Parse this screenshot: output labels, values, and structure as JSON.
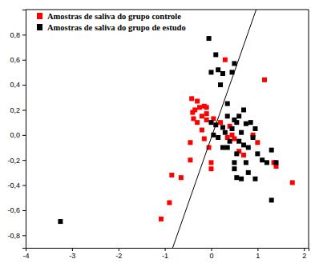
{
  "chart_data": {
    "type": "scatter",
    "xlim": [
      -4,
      2.1
    ],
    "ylim": [
      -0.9,
      1.0
    ],
    "xticks": [
      -4,
      -3,
      -2,
      -1,
      0,
      1,
      2
    ],
    "yticks": [
      {
        "value": -0.8,
        "label": "-0,8"
      },
      {
        "value": -0.6,
        "label": "-0,6"
      },
      {
        "value": -0.4,
        "label": "-0,4"
      },
      {
        "value": -0.2,
        "label": "-0,2"
      },
      {
        "value": 0,
        "label": "0,0"
      },
      {
        "value": 0.2,
        "label": "0,2"
      },
      {
        "value": 0.4,
        "label": "0,4"
      },
      {
        "value": 0.6,
        "label": "0,6"
      },
      {
        "value": 0.8,
        "label": "0,8"
      }
    ],
    "legend": "top-left",
    "grid": false,
    "series": [
      {
        "name": "Amostras de saliva do grupo controle",
        "color": "#ff0000",
        "marker": "square",
        "x": [
          -1.08,
          -0.9,
          -0.85,
          -0.65,
          -0.45,
          -0.45,
          -0.42,
          -0.4,
          -0.38,
          -0.35,
          -0.3,
          -0.3,
          -0.25,
          -0.2,
          -0.2,
          -0.15,
          -0.1,
          -0.1,
          -0.1,
          -0.15,
          -0.05,
          0.0,
          0.0,
          0.05,
          0.2,
          0.3,
          0.35,
          0.4,
          0.5,
          0.6,
          0.7,
          0.9,
          1.0,
          1.15,
          1.35,
          1.4,
          1.75,
          0.45
        ],
        "values": [
          -0.67,
          -0.54,
          -0.32,
          -0.34,
          -0.2,
          -0.06,
          0.29,
          0.18,
          0.13,
          0.2,
          0.27,
          0.1,
          0.22,
          0.15,
          0.04,
          0.23,
          0.22,
          0.17,
          0.12,
          -0.03,
          -0.1,
          -0.22,
          -0.27,
          0.13,
          0.1,
          0.6,
          -0.02,
          0.07,
          -0.03,
          -0.13,
          -0.16,
          0.0,
          -0.06,
          0.44,
          -0.22,
          -0.25,
          -0.38,
          0.0
        ]
      },
      {
        "name": "Amostras de saliva do grupo de estudo",
        "color": "#000000",
        "marker": "square",
        "x": [
          -3.25,
          -0.05,
          0.1,
          0.0,
          0.15,
          0.25,
          0.45,
          0.5,
          0.2,
          0.35,
          0.0,
          0.05,
          0.1,
          0.15,
          0.25,
          0.3,
          0.35,
          0.4,
          0.45,
          0.5,
          0.55,
          0.6,
          0.6,
          0.65,
          0.7,
          0.75,
          0.8,
          0.85,
          0.9,
          0.95,
          0.7,
          0.55,
          0.5,
          0.5,
          0.55,
          0.65,
          0.75,
          0.8,
          1.0,
          1.1,
          1.2,
          1.3,
          1.3,
          1.4,
          0.35,
          0.25,
          0.95
        ],
        "values": [
          -0.69,
          0.77,
          0.64,
          0.5,
          0.52,
          0.49,
          0.5,
          0.57,
          0.4,
          0.25,
          0.1,
          0.0,
          0.08,
          -0.02,
          0.06,
          0.02,
          0.15,
          -0.05,
          0.05,
          0.12,
          0.1,
          0.15,
          -0.05,
          0.02,
          -0.08,
          0.09,
          -0.1,
          0.1,
          -0.02,
          0.05,
          0.2,
          -0.15,
          -0.22,
          -0.27,
          -0.34,
          -0.35,
          -0.22,
          -0.3,
          -0.15,
          -0.2,
          -0.22,
          -0.12,
          -0.52,
          -0.22,
          -0.1,
          -0.1,
          -0.35
        ]
      },
      {
        "type": "line",
        "color": "#000000",
        "line_style": "solid",
        "x": [
          -0.83,
          0.97
        ],
        "values": [
          -0.9,
          1.0
        ]
      }
    ]
  }
}
